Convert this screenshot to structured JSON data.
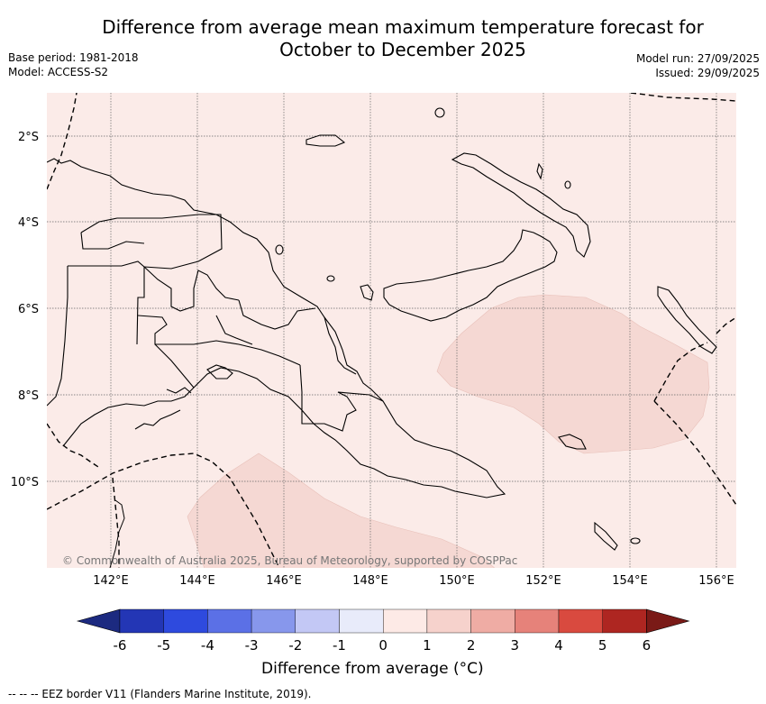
{
  "title": {
    "line1": "Difference from average mean maximum temperature forecast for",
    "line2": "October to December 2025"
  },
  "meta_left": {
    "base_period": "Base period: 1981-2018",
    "model": "Model: ACCESS-S2"
  },
  "meta_right": {
    "model_run": "Model run: 27/09/2025",
    "issued": "Issued: 29/09/2025"
  },
  "map": {
    "lat_labels": [
      "2°S",
      "4°S",
      "6°S",
      "8°S",
      "10°S"
    ],
    "lon_labels": [
      "142°E",
      "144°E",
      "146°E",
      "148°E",
      "150°E",
      "152°E",
      "154°E",
      "156°E"
    ],
    "copyright": "© Commonwealth of Australia 2025, Bureau of Meteorology, supported by COSPPac",
    "colors": {
      "land_sea_bg": "#fbebe8",
      "warm_1_2": "#f5d8d3",
      "coast": "#000000"
    }
  },
  "colorbar": {
    "ticks": [
      "-6",
      "-5",
      "-4",
      "-3",
      "-2",
      "-1",
      "0",
      "1",
      "2",
      "3",
      "4",
      "5",
      "6"
    ],
    "colors": [
      "#1c2a80",
      "#2336b5",
      "#2e4ade",
      "#5b70e6",
      "#8797ec",
      "#c3c8f5",
      "#e8ebfa",
      "#fdeae6",
      "#f6d2cc",
      "#efaca4",
      "#e6827a",
      "#d94a3f",
      "#ae2621",
      "#7a1a17"
    ],
    "label": "Difference from average (°C)"
  },
  "footnote": "-- -- -- EEZ border V11 (Flanders Marine Institute, 2019)."
}
